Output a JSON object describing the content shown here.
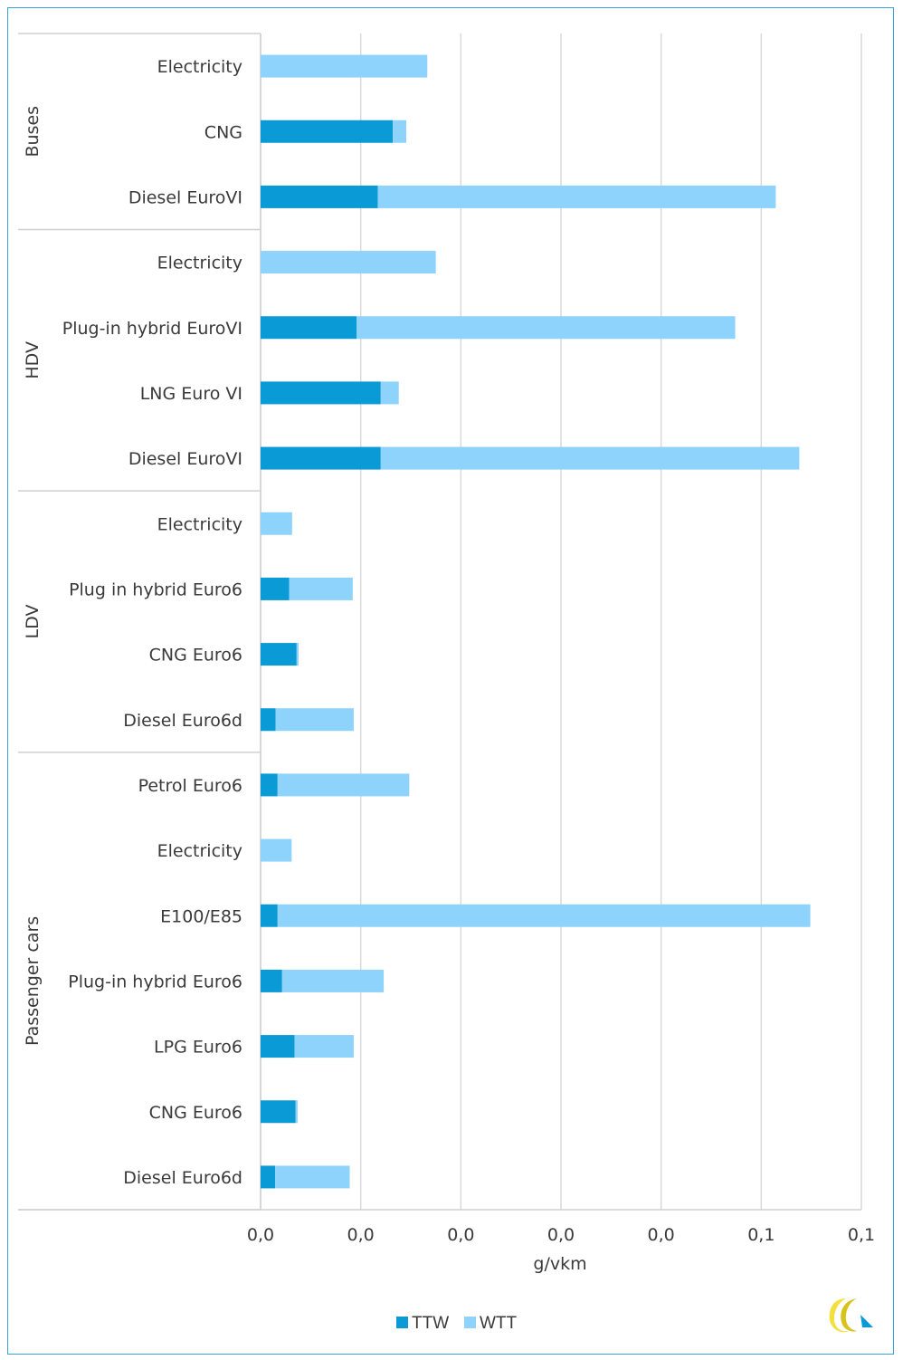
{
  "chart_data": {
    "type": "bar",
    "orientation": "horizontal",
    "stacked": true,
    "xlabel": "g/vkm",
    "x_tick_labels": [
      "0,0",
      "0,0",
      "0,0",
      "0,0",
      "0,0",
      "0,1",
      "0,1"
    ],
    "xlim": [
      0,
      0.12
    ],
    "grid": true,
    "legend_position": "bottom",
    "groups": [
      {
        "name": "Buses",
        "categories": [
          "Electricity",
          "CNG",
          "Diesel EuroVI"
        ]
      },
      {
        "name": "HDV",
        "categories": [
          "Electricity",
          "Plug-in hybrid EuroVI",
          "LNG Euro VI",
          "Diesel EuroVI"
        ]
      },
      {
        "name": "LDV",
        "categories": [
          "Electricity",
          "Plug in hybrid Euro6",
          "CNG Euro6",
          "Diesel Euro6d"
        ]
      },
      {
        "name": "Passenger cars",
        "categories": [
          "Petrol Euro6",
          "Electricity",
          "E100/E85",
          "Plug-in hybrid Euro6",
          "LPG Euro6",
          "CNG Euro6",
          "Diesel Euro6d"
        ]
      }
    ],
    "series": [
      {
        "name": "TTW",
        "color": "#0a9ad6",
        "values": [
          0.0,
          0.0264,
          0.0234,
          0.0,
          0.0192,
          0.024,
          0.024,
          0.0,
          0.0057,
          0.0072,
          0.003,
          0.0034,
          0.0,
          0.0034,
          0.0043,
          0.0068,
          0.007,
          0.0029
        ]
      },
      {
        "name": "WTT",
        "color": "#8ed3fb",
        "values": [
          0.0333,
          0.0027,
          0.0795,
          0.035,
          0.0756,
          0.0036,
          0.0836,
          0.0063,
          0.0127,
          0.0004,
          0.0156,
          0.0263,
          0.0062,
          0.1064,
          0.0203,
          0.0118,
          0.0004,
          0.0149
        ]
      }
    ]
  },
  "logo": {
    "name": "logo-mark-icon",
    "colors": [
      "#f4e03a",
      "#d9c21a",
      "#0a9ad6"
    ]
  }
}
